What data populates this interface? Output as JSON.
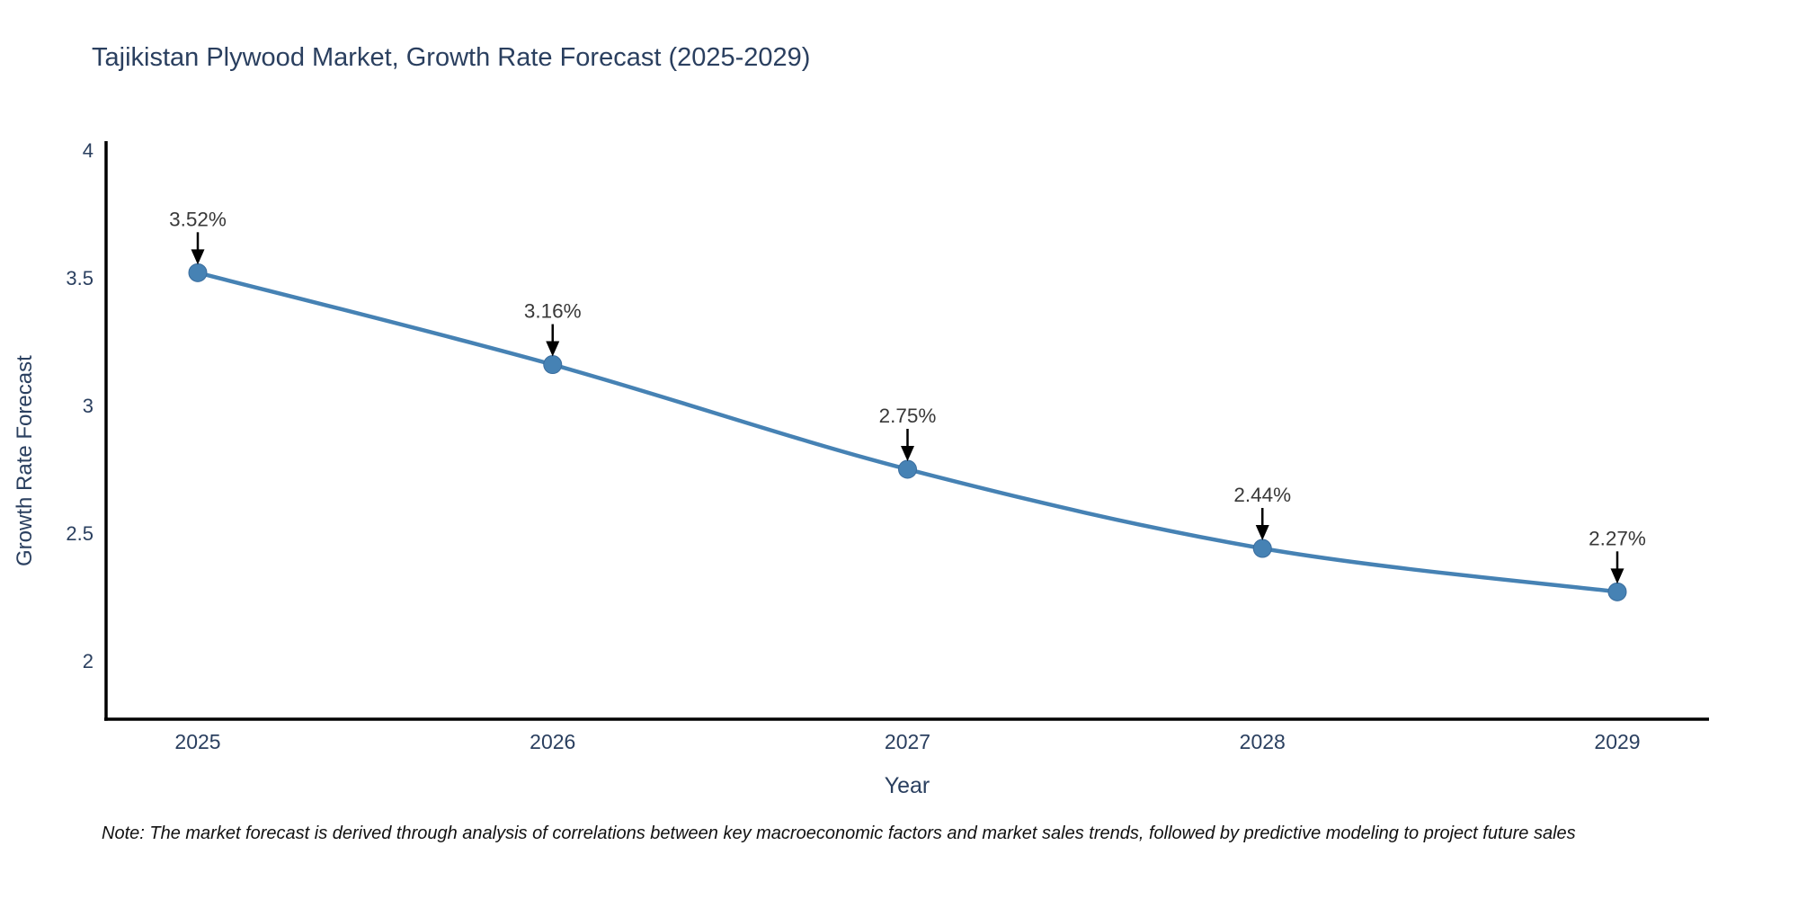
{
  "chart_data": {
    "type": "line",
    "title": "Tajikistan Plywood Market, Growth Rate Forecast (2025-2029)",
    "xlabel": "Year",
    "ylabel": "Growth Rate Forecast",
    "x": [
      2025,
      2026,
      2027,
      2028,
      2029
    ],
    "x_tick_labels": [
      "2025",
      "2026",
      "2027",
      "2028",
      "2029"
    ],
    "series": [
      {
        "name": "Growth Rate Forecast",
        "values": [
          3.52,
          3.16,
          2.75,
          2.44,
          2.27
        ]
      }
    ],
    "annotations": [
      "3.52%",
      "3.16%",
      "2.75%",
      "2.44%",
      "2.27%"
    ],
    "y_ticks": [
      2,
      2.5,
      3,
      3.5,
      4
    ],
    "y_tick_labels": [
      "2",
      "2.5",
      "3",
      "3.5",
      "4"
    ],
    "ylim": [
      1.77,
      4.03
    ],
    "line_shape": "spline",
    "grid": false,
    "legend_position": "none",
    "colors": {
      "line": "#4682b4",
      "marker": "#4682b4",
      "marker_edge": "#3a6d9e",
      "axis_line": "#000000",
      "axis_text": "#2a3f5f",
      "annotation_text": "#383838",
      "annotation_arrow": "#000000",
      "title": "#2a3f5f",
      "background": "#ffffff"
    }
  },
  "note": "Note: The market forecast is derived through analysis of correlations between key macroeconomic factors and market sales trends, followed by predictive modeling to project future sales"
}
